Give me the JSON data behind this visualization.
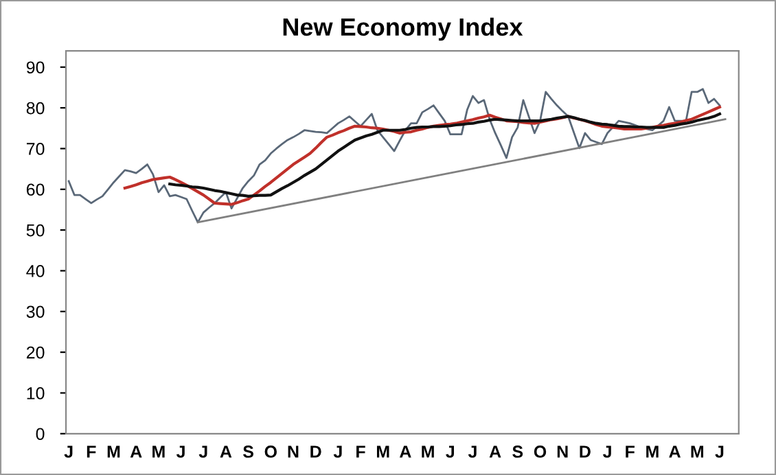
{
  "chart_data": {
    "type": "line",
    "title": "New Economy Index",
    "categories": [
      "J",
      null,
      null,
      null,
      "F",
      null,
      null,
      null,
      "M",
      null,
      null,
      null,
      "A",
      null,
      null,
      null,
      "M",
      null,
      null,
      null,
      "J",
      null,
      null,
      null,
      "J",
      null,
      null,
      null,
      "A",
      null,
      null,
      null,
      "S",
      null,
      null,
      null,
      "O",
      null,
      null,
      null,
      "N",
      null,
      null,
      null,
      "D",
      null,
      null,
      null,
      "J",
      null,
      null,
      null,
      "F",
      null,
      null,
      null,
      "M",
      null,
      null,
      null,
      "A",
      null,
      null,
      null,
      "M",
      null,
      null,
      null,
      "J",
      null,
      null,
      null,
      "J",
      null,
      null,
      null,
      "A",
      null,
      null,
      null,
      "S",
      null,
      null,
      null,
      "O",
      null,
      null,
      null,
      "N",
      null,
      null,
      null,
      "D",
      null,
      null,
      null,
      "J",
      null,
      null,
      null,
      "F",
      null,
      null,
      null,
      "M",
      null,
      null,
      null,
      "A",
      null,
      null,
      null,
      "M",
      null,
      null,
      null,
      "J",
      null,
      null,
      null
    ],
    "ylim": [
      0,
      94
    ],
    "yticks": [
      0,
      10,
      20,
      30,
      40,
      50,
      60,
      70,
      80,
      90
    ],
    "grid": false,
    "marker": "none",
    "line_style": "solid",
    "series": [
      {
        "color": "#5a6878",
        "values": [
          62.0,
          58.6,
          58.6,
          57.6,
          56.6,
          57.5,
          58.3,
          60.0,
          61.7,
          63.2,
          64.7,
          64.4,
          64.0,
          65.0,
          66.1,
          63.7,
          59.3,
          61.0,
          58.3,
          58.6,
          58.1,
          57.6,
          54.7,
          51.9,
          54.3,
          55.5,
          56.6,
          58.0,
          59.3,
          55.3,
          57.8,
          60.3,
          62.0,
          63.4,
          66.1,
          67.1,
          68.8,
          70.0,
          71.1,
          72.1,
          72.8,
          73.6,
          74.5,
          74.3,
          74.1,
          74.0,
          73.8,
          75.0,
          76.2,
          77.0,
          77.9,
          76.7,
          75.5,
          77.0,
          78.5,
          74.5,
          72.8,
          71.1,
          69.4,
          72.0,
          74.5,
          76.2,
          76.2,
          78.9,
          79.7,
          80.6,
          78.7,
          76.8,
          73.5,
          73.5,
          73.5,
          79.5,
          82.9,
          81.2,
          81.9,
          77.2,
          73.8,
          70.8,
          67.7,
          72.8,
          75.2,
          81.9,
          77.8,
          73.8,
          76.8,
          83.9,
          82.2,
          80.6,
          79.2,
          77.9,
          74.0,
          70.1,
          73.8,
          72.1,
          71.6,
          71.1,
          73.8,
          75.3,
          76.8,
          76.5,
          76.2,
          75.7,
          75.2,
          74.8,
          74.5,
          75.6,
          76.8,
          80.2,
          76.8,
          76.8,
          76.8,
          83.9,
          83.9,
          84.6,
          81.2,
          82.2,
          80.6,
          null,
          null,
          null
        ]
      },
      {
        "color": "#c0302a",
        "values": [
          null,
          null,
          null,
          null,
          null,
          null,
          null,
          null,
          null,
          null,
          60.3,
          60.7,
          61.1,
          61.6,
          62.0,
          62.4,
          62.6,
          62.8,
          63.0,
          62.4,
          61.7,
          61.0,
          60.2,
          59.4,
          58.6,
          57.6,
          56.6,
          56.5,
          56.4,
          56.3,
          56.7,
          57.2,
          57.6,
          58.6,
          59.6,
          60.7,
          61.7,
          62.8,
          63.9,
          65.0,
          66.1,
          67.0,
          67.9,
          68.8,
          70.1,
          71.5,
          72.8,
          73.3,
          73.9,
          74.4,
          75.0,
          75.5,
          75.4,
          75.3,
          75.1,
          75.0,
          74.8,
          74.5,
          74.2,
          73.8,
          74.0,
          74.1,
          74.5,
          74.8,
          75.2,
          75.5,
          75.7,
          75.9,
          76.0,
          76.2,
          76.5,
          76.8,
          77.1,
          77.5,
          77.8,
          78.2,
          77.7,
          77.3,
          76.8,
          76.7,
          76.6,
          76.4,
          76.3,
          76.2,
          76.5,
          76.8,
          77.1,
          77.3,
          77.6,
          77.9,
          77.5,
          77.2,
          76.8,
          76.4,
          75.9,
          75.5,
          75.3,
          75.2,
          75.0,
          74.8,
          74.8,
          74.8,
          74.8,
          75.0,
          75.2,
          75.5,
          75.7,
          76.0,
          76.2,
          76.5,
          76.9,
          77.2,
          77.8,
          78.4,
          79.0,
          79.6,
          80.2,
          null,
          null,
          null
        ]
      },
      {
        "color": "#111111",
        "values": [
          null,
          null,
          null,
          null,
          null,
          null,
          null,
          null,
          null,
          null,
          null,
          null,
          null,
          null,
          null,
          null,
          null,
          null,
          61.3,
          61.1,
          61.0,
          60.8,
          60.6,
          60.5,
          60.3,
          60.0,
          59.7,
          59.5,
          59.2,
          58.9,
          58.6,
          58.5,
          58.3,
          58.4,
          58.5,
          58.5,
          58.6,
          59.4,
          60.2,
          60.9,
          61.7,
          62.5,
          63.4,
          64.2,
          65.0,
          66.1,
          67.2,
          68.3,
          69.4,
          70.3,
          71.2,
          72.1,
          72.6,
          73.1,
          73.5,
          74.0,
          74.5,
          74.5,
          74.5,
          74.5,
          74.7,
          75.0,
          75.2,
          75.3,
          75.3,
          75.4,
          75.4,
          75.5,
          75.6,
          75.8,
          75.9,
          76.1,
          76.2,
          76.5,
          76.7,
          77.0,
          77.2,
          77.1,
          77.0,
          76.9,
          76.8,
          76.8,
          76.8,
          76.8,
          76.8,
          77.0,
          77.2,
          77.5,
          77.7,
          77.9,
          77.6,
          77.2,
          76.9,
          76.5,
          76.2,
          76.0,
          75.9,
          75.7,
          75.5,
          75.4,
          75.4,
          75.3,
          75.3,
          75.2,
          75.2,
          75.2,
          75.2,
          75.5,
          75.7,
          76.0,
          76.2,
          76.5,
          76.9,
          77.2,
          77.5,
          77.9,
          78.5,
          null,
          null,
          null
        ]
      },
      {
        "color": "#808080",
        "values": [
          null,
          null,
          null,
          null,
          null,
          null,
          null,
          null,
          null,
          null,
          null,
          null,
          null,
          null,
          null,
          null,
          null,
          null,
          null,
          null,
          null,
          null,
          null,
          51.9,
          null,
          null,
          null,
          null,
          null,
          null,
          null,
          null,
          null,
          null,
          null,
          null,
          null,
          null,
          null,
          null,
          null,
          null,
          null,
          null,
          null,
          null,
          null,
          null,
          null,
          null,
          null,
          null,
          null,
          null,
          null,
          null,
          null,
          null,
          null,
          null,
          null,
          null,
          null,
          null,
          null,
          null,
          null,
          null,
          null,
          null,
          null,
          null,
          null,
          null,
          null,
          null,
          null,
          null,
          null,
          null,
          null,
          null,
          null,
          null,
          null,
          null,
          null,
          null,
          null,
          null,
          null,
          null,
          null,
          null,
          null,
          null,
          null,
          null,
          null,
          null,
          null,
          null,
          null,
          null,
          null,
          null,
          null,
          null,
          null,
          null,
          null,
          null,
          null,
          null,
          null,
          null,
          null,
          77.2,
          null,
          null
        ]
      }
    ]
  }
}
